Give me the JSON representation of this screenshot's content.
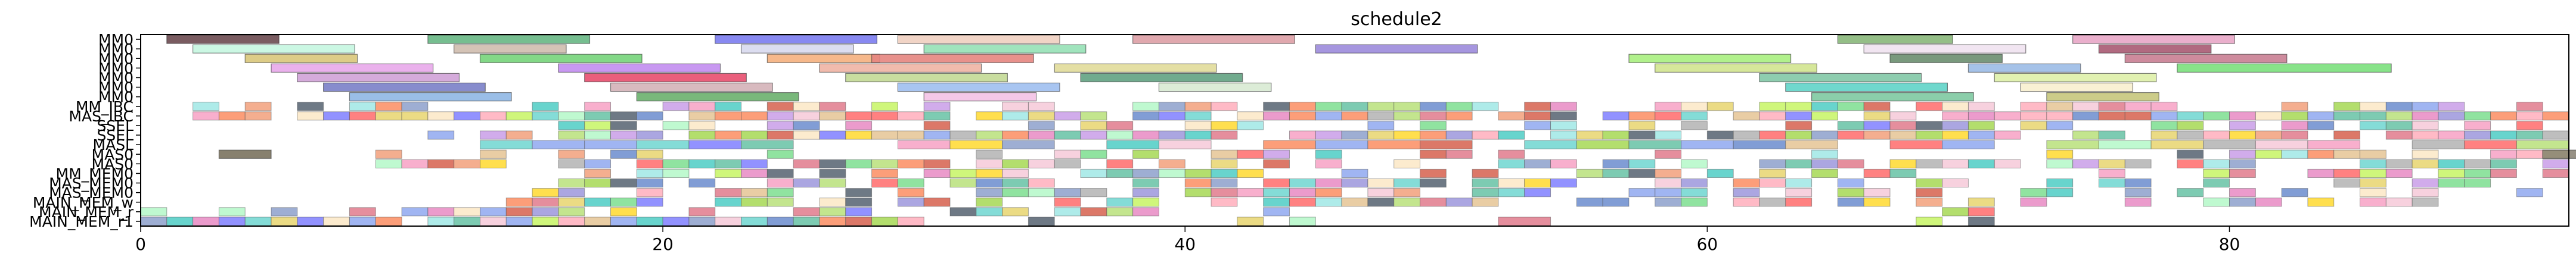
{
  "chart_data": {
    "type": "gantt",
    "title": "schedule2",
    "xlabel": "",
    "ylabel": "",
    "xlim": [
      0,
      93
    ],
    "x_ticks": [
      0,
      20,
      40,
      60,
      80
    ],
    "grid": false,
    "legend": "none",
    "rows": [
      "MM0",
      "MM0",
      "MM0",
      "MM0",
      "MM0",
      "MM0",
      "MM0",
      "MM_IBC",
      "MAS_IBC",
      "SSEL",
      "SSEL",
      "MASL",
      "MAS0",
      "MAS0",
      "MM_MEM0",
      "MAS_MEM0",
      "MAS_MEM0",
      "MAIN_MEM_w",
      "MAIN_MEM_r",
      "MAIN_MEM_r1"
    ],
    "tasks": [
      {
        "row": 0,
        "start": 1.0,
        "end": 5.3,
        "color": "#6b4a50"
      },
      {
        "row": 0,
        "start": 11.0,
        "end": 17.2,
        "color": "#67b784"
      },
      {
        "row": 0,
        "start": 22.0,
        "end": 28.2,
        "color": "#7b7cf0"
      },
      {
        "row": 0,
        "start": 29.0,
        "end": 35.2,
        "color": "#f0cfc0"
      },
      {
        "row": 0,
        "start": 38.0,
        "end": 44.2,
        "color": "#dd9fa5"
      },
      {
        "row": 0,
        "start": 65.0,
        "end": 69.4,
        "color": "#88b77a"
      },
      {
        "row": 0,
        "start": 74.0,
        "end": 80.2,
        "color": "#e8a6c6"
      },
      {
        "row": 1,
        "start": 2.0,
        "end": 8.2,
        "color": "#c5f6e0"
      },
      {
        "row": 1,
        "start": 12.0,
        "end": 16.3,
        "color": "#cfbcae"
      },
      {
        "row": 1,
        "start": 23.0,
        "end": 27.3,
        "color": "#d8d9ee"
      },
      {
        "row": 1,
        "start": 30.0,
        "end": 36.2,
        "color": "#96e1b6"
      },
      {
        "row": 1,
        "start": 45.0,
        "end": 51.2,
        "color": "#9c8bdb"
      },
      {
        "row": 1,
        "start": 66.0,
        "end": 72.2,
        "color": "#f0e2f0"
      },
      {
        "row": 1,
        "start": 75.0,
        "end": 79.3,
        "color": "#a85a72"
      },
      {
        "row": 2,
        "start": 4.0,
        "end": 8.3,
        "color": "#d9c67a"
      },
      {
        "row": 2,
        "start": 13.0,
        "end": 19.2,
        "color": "#76d47a"
      },
      {
        "row": 2,
        "start": 24.0,
        "end": 28.3,
        "color": "#f5b07e"
      },
      {
        "row": 2,
        "start": 28.0,
        "end": 34.2,
        "color": "#e6857f"
      },
      {
        "row": 2,
        "start": 57.0,
        "end": 63.2,
        "color": "#a9ef7f"
      },
      {
        "row": 2,
        "start": 67.0,
        "end": 71.3,
        "color": "#6a8e6f"
      },
      {
        "row": 2,
        "start": 76.0,
        "end": 82.2,
        "color": "#c97e92"
      },
      {
        "row": 3,
        "start": 5.0,
        "end": 11.2,
        "color": "#e8a8ea"
      },
      {
        "row": 3,
        "start": 16.0,
        "end": 22.2,
        "color": "#c28df0"
      },
      {
        "row": 3,
        "start": 26.0,
        "end": 32.2,
        "color": "#f0b4a4"
      },
      {
        "row": 3,
        "start": 35.0,
        "end": 41.2,
        "color": "#e1db9a"
      },
      {
        "row": 3,
        "start": 58.0,
        "end": 64.2,
        "color": "#d2e48f"
      },
      {
        "row": 3,
        "start": 70.0,
        "end": 74.3,
        "color": "#9bbbe6"
      },
      {
        "row": 3,
        "start": 78.0,
        "end": 86.2,
        "color": "#7be07c"
      },
      {
        "row": 4,
        "start": 6.0,
        "end": 12.2,
        "color": "#d0a2d7"
      },
      {
        "row": 4,
        "start": 17.0,
        "end": 23.2,
        "color": "#e84e6e"
      },
      {
        "row": 4,
        "start": 27.0,
        "end": 33.2,
        "color": "#c3d995"
      },
      {
        "row": 4,
        "start": 36.0,
        "end": 42.2,
        "color": "#62a282"
      },
      {
        "row": 4,
        "start": 62.0,
        "end": 68.2,
        "color": "#82c8a6"
      },
      {
        "row": 4,
        "start": 71.0,
        "end": 77.2,
        "color": "#def0a8"
      },
      {
        "row": 5,
        "start": 7.0,
        "end": 13.2,
        "color": "#7a7fc8"
      },
      {
        "row": 5,
        "start": 18.0,
        "end": 24.2,
        "color": "#d4b2b8"
      },
      {
        "row": 5,
        "start": 29.0,
        "end": 35.2,
        "color": "#9fbff0"
      },
      {
        "row": 5,
        "start": 39.0,
        "end": 43.3,
        "color": "#d8ead3"
      },
      {
        "row": 5,
        "start": 63.0,
        "end": 69.2,
        "color": "#5fd4c8"
      },
      {
        "row": 5,
        "start": 72.0,
        "end": 76.3,
        "color": "#f8f0cf"
      },
      {
        "row": 6,
        "start": 8.0,
        "end": 14.2,
        "color": "#8fb7e4"
      },
      {
        "row": 6,
        "start": 19.0,
        "end": 25.2,
        "color": "#6ab06d"
      },
      {
        "row": 6,
        "start": 30.0,
        "end": 34.3,
        "color": "#f3c2e6"
      },
      {
        "row": 6,
        "start": 64.0,
        "end": 70.2,
        "color": "#7ec9a1"
      },
      {
        "row": 6,
        "start": 73.0,
        "end": 77.3,
        "color": "#c6c77c"
      },
      {
        "row": 12,
        "start": 3.0,
        "end": 5.0,
        "color": "#7a725e"
      },
      {
        "row": 12,
        "start": 92.0,
        "end": 94.0,
        "color": "#8c8578"
      }
    ],
    "dense_palette": [
      "#8fa8f0",
      "#7dde8f",
      "#e8d56e",
      "#c99ee8",
      "#f2a07b",
      "#6fd6d0",
      "#e07a8c",
      "#b8e07a",
      "#9c96dc",
      "#f6c9d8",
      "#66c2a5",
      "#fc8d62",
      "#8da0cb",
      "#e78ac3",
      "#a6d854",
      "#ffd92f",
      "#e5c494",
      "#b3b3b3",
      "#6b8cce",
      "#d6604d",
      "#4ecdc4",
      "#ff6b6b",
      "#c7f464",
      "#556270",
      "#f7a1c4",
      "#a0e7e5",
      "#b4f8c8",
      "#fbe7c6",
      "#ffaebc",
      "#7f7fff"
    ]
  }
}
